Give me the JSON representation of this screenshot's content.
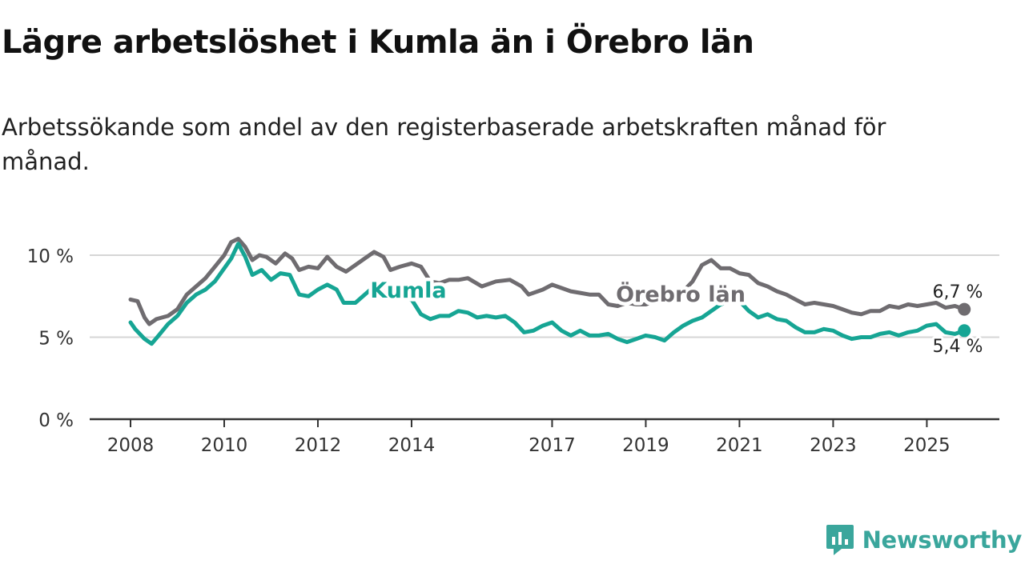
{
  "title": "Lägre arbetslöshet i Kumla än i Örebro län",
  "subtitle": "Arbetssökande som andel av den registerbaserade arbetskraften månad för månad.",
  "brand": {
    "name": "Newsworthy",
    "color": "#3aa69c"
  },
  "chart_data": {
    "type": "line",
    "title": "Lägre arbetslöshet i Kumla än i Örebro län",
    "subtitle": "Arbetssökande som andel av den registerbaserade arbetskraften månad för månad.",
    "xlabel": "",
    "ylabel": "",
    "xlim": [
      2008,
      2026.6
    ],
    "ylim": [
      0,
      11
    ],
    "y_ticks": [
      0,
      5,
      10
    ],
    "y_tick_labels": [
      "0 %",
      "5 %",
      "10 %"
    ],
    "x_ticks": [
      2008,
      2010,
      2012,
      2014,
      2017,
      2019,
      2021,
      2023,
      2025
    ],
    "x_tick_labels": [
      "2008",
      "2010",
      "2012",
      "2014",
      "2017",
      "2019",
      "2021",
      "2023",
      "2025"
    ],
    "grid": true,
    "series": [
      {
        "name": "Örebro län",
        "label": "Örebro län",
        "color": "#6f6c70",
        "end_label": "6,7 %",
        "end_value": 6.7,
        "points": [
          [
            2008.0,
            7.3
          ],
          [
            2008.15,
            7.2
          ],
          [
            2008.3,
            6.2
          ],
          [
            2008.4,
            5.8
          ],
          [
            2008.55,
            6.1
          ],
          [
            2008.8,
            6.3
          ],
          [
            2009.0,
            6.7
          ],
          [
            2009.2,
            7.6
          ],
          [
            2009.4,
            8.1
          ],
          [
            2009.6,
            8.6
          ],
          [
            2009.8,
            9.3
          ],
          [
            2010.0,
            10.0
          ],
          [
            2010.15,
            10.8
          ],
          [
            2010.3,
            11.0
          ],
          [
            2010.45,
            10.5
          ],
          [
            2010.6,
            9.7
          ],
          [
            2010.75,
            10.0
          ],
          [
            2010.9,
            9.9
          ],
          [
            2011.1,
            9.5
          ],
          [
            2011.3,
            10.1
          ],
          [
            2011.45,
            9.8
          ],
          [
            2011.6,
            9.1
          ],
          [
            2011.8,
            9.3
          ],
          [
            2012.0,
            9.2
          ],
          [
            2012.2,
            9.9
          ],
          [
            2012.4,
            9.3
          ],
          [
            2012.6,
            9.0
          ],
          [
            2012.8,
            9.4
          ],
          [
            2013.0,
            9.8
          ],
          [
            2013.2,
            10.2
          ],
          [
            2013.4,
            9.9
          ],
          [
            2013.55,
            9.1
          ],
          [
            2013.75,
            9.3
          ],
          [
            2014.0,
            9.5
          ],
          [
            2014.2,
            9.3
          ],
          [
            2014.4,
            8.4
          ],
          [
            2014.6,
            8.3
          ],
          [
            2014.8,
            8.5
          ],
          [
            2015.0,
            8.5
          ],
          [
            2015.2,
            8.6
          ],
          [
            2015.5,
            8.1
          ],
          [
            2015.8,
            8.4
          ],
          [
            2016.1,
            8.5
          ],
          [
            2016.35,
            8.1
          ],
          [
            2016.5,
            7.6
          ],
          [
            2016.8,
            7.9
          ],
          [
            2017.0,
            8.2
          ],
          [
            2017.2,
            8.0
          ],
          [
            2017.4,
            7.8
          ],
          [
            2017.6,
            7.7
          ],
          [
            2017.8,
            7.6
          ],
          [
            2018.0,
            7.6
          ],
          [
            2018.2,
            7.0
          ],
          [
            2018.4,
            6.9
          ],
          [
            2018.6,
            7.1
          ],
          [
            2018.8,
            7.0
          ],
          [
            2019.0,
            7.0
          ],
          [
            2019.2,
            7.2
          ],
          [
            2019.4,
            7.1
          ],
          [
            2019.6,
            7.2
          ],
          [
            2019.8,
            7.8
          ],
          [
            2020.0,
            8.4
          ],
          [
            2020.2,
            9.4
          ],
          [
            2020.4,
            9.7
          ],
          [
            2020.6,
            9.2
          ],
          [
            2020.8,
            9.2
          ],
          [
            2021.0,
            8.9
          ],
          [
            2021.2,
            8.8
          ],
          [
            2021.4,
            8.3
          ],
          [
            2021.6,
            8.1
          ],
          [
            2021.8,
            7.8
          ],
          [
            2022.0,
            7.6
          ],
          [
            2022.2,
            7.3
          ],
          [
            2022.4,
            7.0
          ],
          [
            2022.6,
            7.1
          ],
          [
            2022.8,
            7.0
          ],
          [
            2023.0,
            6.9
          ],
          [
            2023.2,
            6.7
          ],
          [
            2023.4,
            6.5
          ],
          [
            2023.6,
            6.4
          ],
          [
            2023.8,
            6.6
          ],
          [
            2024.0,
            6.6
          ],
          [
            2024.2,
            6.9
          ],
          [
            2024.4,
            6.8
          ],
          [
            2024.6,
            7.0
          ],
          [
            2024.8,
            6.9
          ],
          [
            2025.0,
            7.0
          ],
          [
            2025.2,
            7.1
          ],
          [
            2025.4,
            6.8
          ],
          [
            2025.6,
            6.9
          ],
          [
            2025.8,
            6.7
          ]
        ]
      },
      {
        "name": "Kumla",
        "label": "Kumla",
        "color": "#16a594",
        "end_label": "5,4 %",
        "end_value": 5.4,
        "points": [
          [
            2008.0,
            5.9
          ],
          [
            2008.1,
            5.5
          ],
          [
            2008.3,
            4.9
          ],
          [
            2008.45,
            4.6
          ],
          [
            2008.6,
            5.1
          ],
          [
            2008.8,
            5.8
          ],
          [
            2009.0,
            6.3
          ],
          [
            2009.2,
            7.1
          ],
          [
            2009.4,
            7.6
          ],
          [
            2009.6,
            7.9
          ],
          [
            2009.8,
            8.4
          ],
          [
            2010.0,
            9.2
          ],
          [
            2010.15,
            9.8
          ],
          [
            2010.3,
            10.7
          ],
          [
            2010.45,
            9.9
          ],
          [
            2010.6,
            8.8
          ],
          [
            2010.8,
            9.1
          ],
          [
            2011.0,
            8.5
          ],
          [
            2011.2,
            8.9
          ],
          [
            2011.4,
            8.8
          ],
          [
            2011.6,
            7.6
          ],
          [
            2011.8,
            7.5
          ],
          [
            2012.0,
            7.9
          ],
          [
            2012.2,
            8.2
          ],
          [
            2012.4,
            7.9
          ],
          [
            2012.55,
            7.1
          ],
          [
            2012.8,
            7.1
          ],
          [
            2013.0,
            7.6
          ],
          [
            2013.2,
            8.1
          ],
          [
            2013.4,
            8.0
          ],
          [
            2013.6,
            7.8
          ],
          [
            2013.8,
            7.5
          ],
          [
            2014.0,
            7.3
          ],
          [
            2014.2,
            6.4
          ],
          [
            2014.4,
            6.1
          ],
          [
            2014.6,
            6.3
          ],
          [
            2014.8,
            6.3
          ],
          [
            2015.0,
            6.6
          ],
          [
            2015.2,
            6.5
          ],
          [
            2015.4,
            6.2
          ],
          [
            2015.6,
            6.3
          ],
          [
            2015.8,
            6.2
          ],
          [
            2016.0,
            6.3
          ],
          [
            2016.2,
            5.9
          ],
          [
            2016.4,
            5.3
          ],
          [
            2016.6,
            5.4
          ],
          [
            2016.8,
            5.7
          ],
          [
            2017.0,
            5.9
          ],
          [
            2017.2,
            5.4
          ],
          [
            2017.4,
            5.1
          ],
          [
            2017.6,
            5.4
          ],
          [
            2017.8,
            5.1
          ],
          [
            2018.0,
            5.1
          ],
          [
            2018.2,
            5.2
          ],
          [
            2018.4,
            4.9
          ],
          [
            2018.6,
            4.7
          ],
          [
            2018.8,
            4.9
          ],
          [
            2019.0,
            5.1
          ],
          [
            2019.2,
            5.0
          ],
          [
            2019.4,
            4.8
          ],
          [
            2019.6,
            5.3
          ],
          [
            2019.8,
            5.7
          ],
          [
            2020.0,
            6.0
          ],
          [
            2020.2,
            6.2
          ],
          [
            2020.4,
            6.6
          ],
          [
            2020.6,
            7.0
          ],
          [
            2020.8,
            7.2
          ],
          [
            2021.0,
            7.2
          ],
          [
            2021.2,
            6.6
          ],
          [
            2021.4,
            6.2
          ],
          [
            2021.6,
            6.4
          ],
          [
            2021.8,
            6.1
          ],
          [
            2022.0,
            6.0
          ],
          [
            2022.2,
            5.6
          ],
          [
            2022.4,
            5.3
          ],
          [
            2022.6,
            5.3
          ],
          [
            2022.8,
            5.5
          ],
          [
            2023.0,
            5.4
          ],
          [
            2023.2,
            5.1
          ],
          [
            2023.4,
            4.9
          ],
          [
            2023.6,
            5.0
          ],
          [
            2023.8,
            5.0
          ],
          [
            2024.0,
            5.2
          ],
          [
            2024.2,
            5.3
          ],
          [
            2024.4,
            5.1
          ],
          [
            2024.6,
            5.3
          ],
          [
            2024.8,
            5.4
          ],
          [
            2025.0,
            5.7
          ],
          [
            2025.2,
            5.8
          ],
          [
            2025.4,
            5.3
          ],
          [
            2025.6,
            5.2
          ],
          [
            2025.8,
            5.4
          ]
        ]
      }
    ]
  }
}
